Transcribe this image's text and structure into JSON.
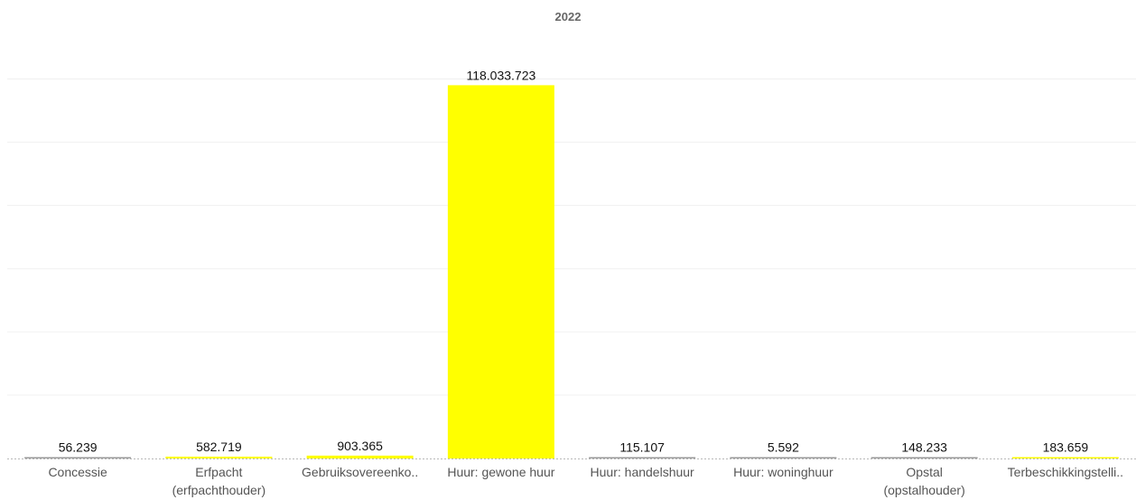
{
  "chart_data": {
    "type": "bar",
    "title": "2022",
    "xlabel": "",
    "ylabel": "",
    "categories": [
      "Concessie",
      "Erfpacht (erfpachthouder)",
      "Gebruiksovereenko..",
      "Huur: gewone huur",
      "Huur: handelshuur",
      "Huur: woninghuur",
      "Opstal (opstalhouder)",
      "Terbeschikkingstelli.."
    ],
    "category_lines": [
      [
        "Concessie"
      ],
      [
        "Erfpacht",
        "(erfpachthouder)"
      ],
      [
        "Gebruiksovereenko.."
      ],
      [
        "Huur: gewone huur"
      ],
      [
        "Huur: handelshuur"
      ],
      [
        "Huur: woninghuur"
      ],
      [
        "Opstal",
        "(opstalhouder)"
      ],
      [
        "Terbeschikkingstelli.."
      ]
    ],
    "values": [
      56239,
      582719,
      903365,
      118033723,
      115107,
      5592,
      148233,
      183659
    ],
    "value_labels": [
      "56.239",
      "582.719",
      "903.365",
      "118.033.723",
      "115.107",
      "5.592",
      "148.233",
      "183.659"
    ],
    "ylim": [
      0,
      125000000
    ],
    "grid": true,
    "legend": "none",
    "colors": {
      "bar": "#ffff00",
      "small_bar_outline": "#999999"
    }
  }
}
